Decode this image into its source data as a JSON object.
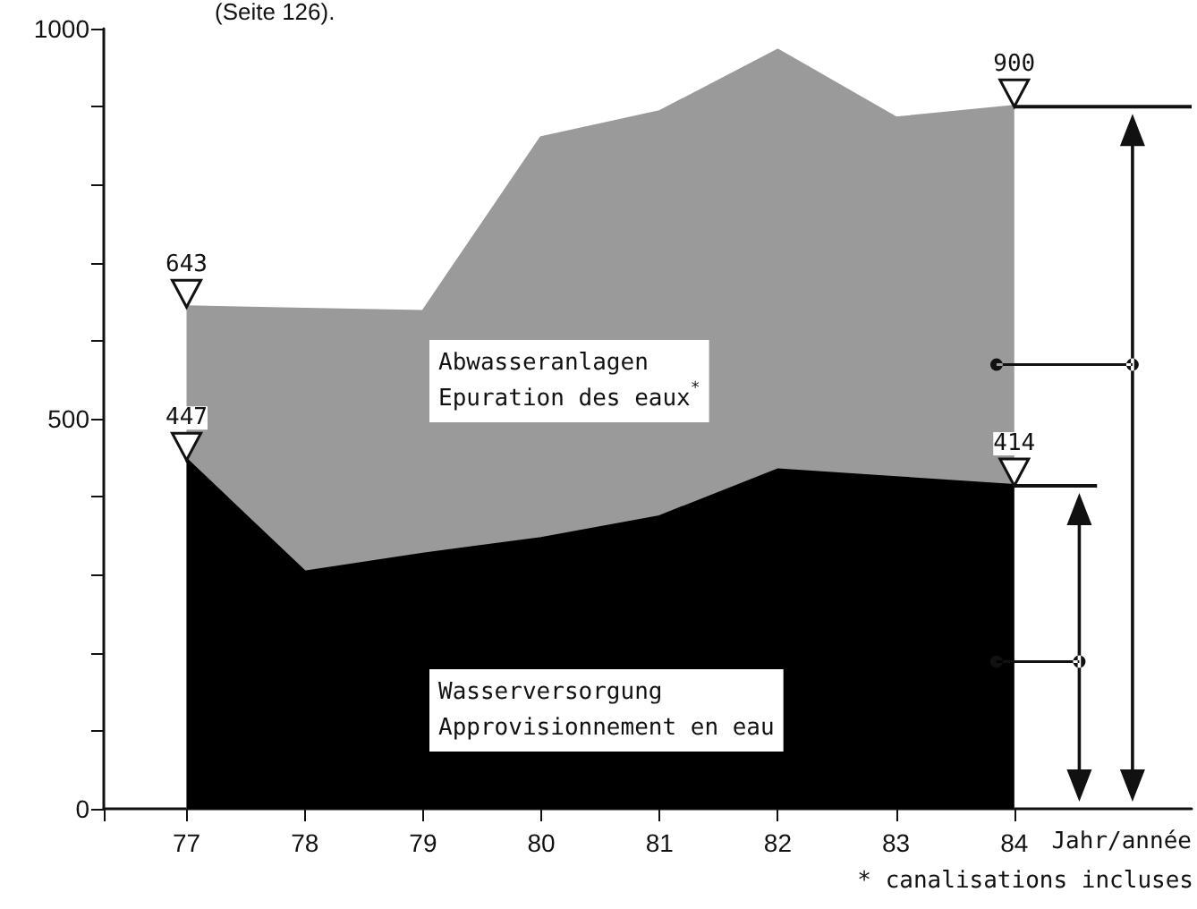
{
  "chart_data": {
    "type": "area",
    "stacked": true,
    "marker": "none",
    "grid": false,
    "x": [
      77,
      78,
      79,
      80,
      81,
      82,
      83,
      84
    ],
    "xlim": [
      76.3,
      85.5
    ],
    "xticks": [
      {
        "value": 76.3,
        "label": null
      },
      77,
      78,
      79,
      80,
      81,
      82,
      83,
      84
    ],
    "xlabel": "Jahr/année",
    "ylim": [
      0,
      1000
    ],
    "yticks": [
      0,
      {
        "value": 100,
        "label": null
      },
      {
        "value": 200,
        "label": null
      },
      {
        "value": 300,
        "label": null
      },
      {
        "value": 400,
        "label": null
      },
      500,
      {
        "value": 600,
        "label": null
      },
      {
        "value": 700,
        "label": null
      },
      {
        "value": 800,
        "label": null
      },
      {
        "value": 900,
        "label": null
      },
      1000
    ],
    "series": [
      {
        "name": "Wasserversorgung\nApprovisionnement en eau",
        "color": "#000000",
        "values": [
          447,
          303,
          326,
          346,
          374,
          434,
          424,
          414
        ]
      },
      {
        "name": "Abwasseranlagen\nEpuration des eaux$^{*}$",
        "color": "#9a9a9a",
        "values": [
          196,
          337,
          311,
          514,
          519,
          538,
          461,
          486
        ]
      }
    ],
    "annotations": [
      "(Seite 126).",
      "* canalisations incluses",
      "643",
      "900",
      {
        "text": "447",
        "x": 77,
        "y": 447
      },
      {
        "text": "414",
        "x": 84,
        "y": 414
      }
    ]
  }
}
